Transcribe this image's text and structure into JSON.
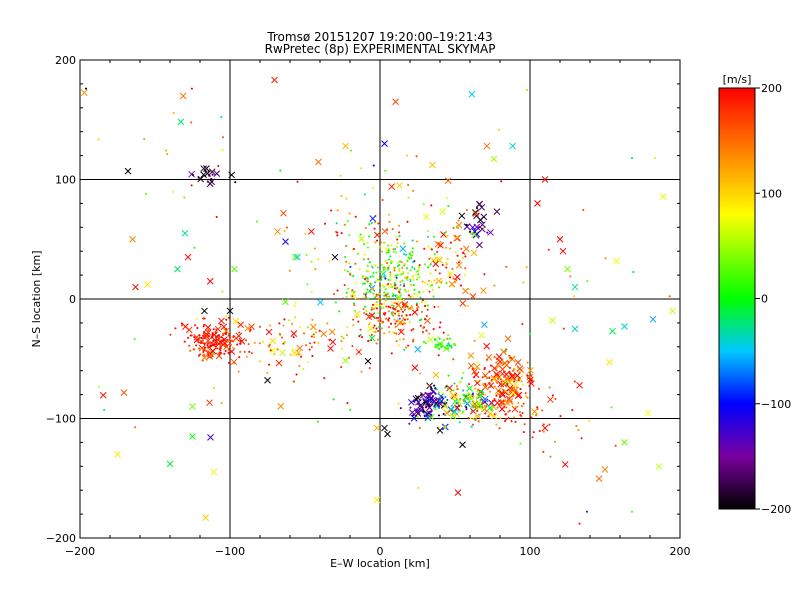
{
  "chart_data": {
    "type": "scatter",
    "title": "Tromsø 20151207 19:20:00–19:21:43",
    "subtitle": "RwPretec (8p) EXPERIMENTAL SKYMAP",
    "xlabel": "E–W location [km]",
    "ylabel": "N–S location [km]",
    "xlim": [
      -200,
      200
    ],
    "ylim": [
      -200,
      200
    ],
    "xticks": [
      -200,
      -100,
      0,
      100,
      200
    ],
    "yticks": [
      -200,
      -100,
      0,
      100,
      200
    ],
    "xtick_labels": [
      "−200",
      "−100",
      "0",
      "100",
      "200"
    ],
    "ytick_labels": [
      "−200",
      "−100",
      "0",
      "100",
      "200"
    ],
    "grid": true,
    "colorbar": {
      "label": "[m/s]",
      "range": [
        -200,
        200
      ],
      "ticks": [
        -200,
        -100,
        0,
        100,
        200
      ],
      "tick_labels": [
        "−200",
        "−100",
        "0",
        "100",
        "200"
      ],
      "stops": [
        {
          "value": -200,
          "color": "#000000"
        },
        {
          "value": -150,
          "color": "#7a00a0"
        },
        {
          "value": -100,
          "color": "#0000ff"
        },
        {
          "value": -50,
          "color": "#00c8ff"
        },
        {
          "value": 0,
          "color": "#00ff00"
        },
        {
          "value": 80,
          "color": "#ffff00"
        },
        {
          "value": 140,
          "color": "#ff8000"
        },
        {
          "value": 200,
          "color": "#ff0000"
        }
      ]
    },
    "markers": {
      "cross": "x",
      "dot": "+"
    },
    "clusters": [
      {
        "cx": 8,
        "cy": 15,
        "sx": 15,
        "sy": 18,
        "n": 320,
        "vmean": 40,
        "vsd": 60,
        "cross_frac": 0.03
      },
      {
        "cx": 10,
        "cy": -15,
        "sx": 14,
        "sy": 12,
        "n": 140,
        "vmean": 170,
        "vsd": 40,
        "cross_frac": 0.05
      },
      {
        "cx": -112,
        "cy": -35,
        "sx": 9,
        "sy": 8,
        "n": 170,
        "vmean": 185,
        "vsd": 25,
        "cross_frac": 0.15
      },
      {
        "cx": 82,
        "cy": -72,
        "sx": 10,
        "sy": 14,
        "n": 170,
        "vmean": 165,
        "vsd": 45,
        "cross_frac": 0.4
      },
      {
        "cx": 32,
        "cy": -88,
        "sx": 6,
        "sy": 7,
        "n": 90,
        "vmean": -150,
        "vsd": 50,
        "cross_frac": 0.4
      },
      {
        "cx": 55,
        "cy": -85,
        "sx": 12,
        "sy": 10,
        "n": 120,
        "vmean": 40,
        "vsd": 90,
        "cross_frac": 0.25
      },
      {
        "cx": 40,
        "cy": -37,
        "sx": 5,
        "sy": 3,
        "n": 45,
        "vmean": 15,
        "vsd": 25,
        "cross_frac": 0.05
      },
      {
        "cx": -115,
        "cy": 102,
        "sx": 7,
        "sy": 4,
        "n": 20,
        "vmean": -190,
        "vsd": 15,
        "cross_frac": 0.7
      },
      {
        "cx": 65,
        "cy": 65,
        "sx": 6,
        "sy": 8,
        "n": 25,
        "vmean": -170,
        "vsd": 40,
        "cross_frac": 0.7
      },
      {
        "cx": 48,
        "cy": 35,
        "sx": 10,
        "sy": 15,
        "n": 60,
        "vmean": 150,
        "vsd": 60,
        "cross_frac": 0.3
      },
      {
        "cx": -60,
        "cy": -35,
        "sx": 30,
        "sy": 12,
        "n": 110,
        "vmean": 160,
        "vsd": 60,
        "cross_frac": 0.25
      },
      {
        "cx": -10,
        "cy": 50,
        "sx": 25,
        "sy": 30,
        "n": 90,
        "vmean": 120,
        "vsd": 70,
        "cross_frac": 0.05
      },
      {
        "cx": 90,
        "cy": -95,
        "sx": 25,
        "sy": 15,
        "n": 70,
        "vmean": 175,
        "vsd": 30,
        "cross_frac": 0.1
      },
      {
        "cx": 0,
        "cy": 0,
        "sx": 110,
        "sy": 95,
        "n": 160,
        "vmean": 110,
        "vsd": 80,
        "cross_frac": 0.35
      }
    ],
    "singles": [
      {
        "x": -196,
        "y": 176,
        "v": -200,
        "m": "dot"
      },
      {
        "x": -168,
        "y": 107,
        "v": -200,
        "m": "cross"
      },
      {
        "x": -165,
        "y": 50,
        "v": 140,
        "m": "cross"
      },
      {
        "x": -163,
        "y": 10,
        "v": 200,
        "m": "cross"
      },
      {
        "x": -155,
        "y": 12,
        "v": 90,
        "m": "cross"
      },
      {
        "x": -130,
        "y": 55,
        "v": -30,
        "m": "cross"
      },
      {
        "x": -135,
        "y": 25,
        "v": -20,
        "m": "cross"
      },
      {
        "x": -128,
        "y": 35,
        "v": 200,
        "m": "cross"
      },
      {
        "x": -175,
        "y": -130,
        "v": 90,
        "m": "cross"
      },
      {
        "x": -140,
        "y": -138,
        "v": -10,
        "m": "cross"
      },
      {
        "x": -125,
        "y": -115,
        "v": 0,
        "m": "cross"
      },
      {
        "x": -125,
        "y": -90,
        "v": 30,
        "m": "cross"
      },
      {
        "x": -97,
        "y": 25,
        "v": 30,
        "m": "cross"
      },
      {
        "x": -75,
        "y": -68,
        "v": -200,
        "m": "cross"
      },
      {
        "x": -63,
        "y": 48,
        "v": -110,
        "m": "cross"
      },
      {
        "x": -55,
        "y": 35,
        "v": -40,
        "m": "cross"
      },
      {
        "x": -30,
        "y": 35,
        "v": -190,
        "m": "cross"
      },
      {
        "x": -23,
        "y": 128,
        "v": 110,
        "m": "cross"
      },
      {
        "x": 3,
        "y": 130,
        "v": -100,
        "m": "cross"
      },
      {
        "x": 18,
        "y": 120,
        "v": 100,
        "m": "dot"
      },
      {
        "x": 35,
        "y": 112,
        "v": 110,
        "m": "cross"
      },
      {
        "x": 13,
        "y": 95,
        "v": 100,
        "m": "cross"
      },
      {
        "x": 98,
        "y": 175,
        "v": 40,
        "m": "dot"
      },
      {
        "x": 110,
        "y": 100,
        "v": 200,
        "m": "cross"
      },
      {
        "x": 105,
        "y": 80,
        "v": 200,
        "m": "cross"
      },
      {
        "x": 120,
        "y": 50,
        "v": 200,
        "m": "cross"
      },
      {
        "x": 122,
        "y": 40,
        "v": 200,
        "m": "cross"
      },
      {
        "x": 125,
        "y": 25,
        "v": 40,
        "m": "cross"
      },
      {
        "x": 130,
        "y": 10,
        "v": -30,
        "m": "cross"
      },
      {
        "x": 115,
        "y": -18,
        "v": 60,
        "m": "cross"
      },
      {
        "x": 130,
        "y": -25,
        "v": -40,
        "m": "cross"
      },
      {
        "x": 155,
        "y": -27,
        "v": -20,
        "m": "cross"
      },
      {
        "x": 163,
        "y": -23,
        "v": -40,
        "m": "cross"
      },
      {
        "x": 182,
        "y": -17,
        "v": -60,
        "m": "cross"
      },
      {
        "x": 195,
        "y": -10,
        "v": 60,
        "m": "cross"
      },
      {
        "x": 168,
        "y": 118,
        "v": -20,
        "m": "dot"
      },
      {
        "x": 153,
        "y": -53,
        "v": 90,
        "m": "cross"
      },
      {
        "x": 163,
        "y": -120,
        "v": 30,
        "m": "cross"
      },
      {
        "x": 110,
        "y": -108,
        "v": 200,
        "m": "cross"
      },
      {
        "x": 138,
        "y": -178,
        "v": -90,
        "m": "dot"
      },
      {
        "x": 168,
        "y": -178,
        "v": 20,
        "m": "dot"
      },
      {
        "x": 133,
        "y": -188,
        "v": 190,
        "m": "dot"
      },
      {
        "x": 52,
        "y": -162,
        "v": 200,
        "m": "cross"
      },
      {
        "x": 55,
        "y": -122,
        "v": -200,
        "m": "cross"
      },
      {
        "x": -2,
        "y": -168,
        "v": 90,
        "m": "cross"
      },
      {
        "x": 3,
        "y": -108,
        "v": -200,
        "m": "cross"
      },
      {
        "x": 5,
        "y": -113,
        "v": -200,
        "m": "cross"
      },
      {
        "x": 40,
        "y": -110,
        "v": -200,
        "m": "cross"
      },
      {
        "x": -117,
        "y": -10,
        "v": -200,
        "m": "cross"
      },
      {
        "x": -100,
        "y": -10,
        "v": -200,
        "m": "cross"
      },
      {
        "x": -65,
        "y": -45,
        "v": 60,
        "m": "cross"
      },
      {
        "x": -8,
        "y": -52,
        "v": -200,
        "m": "cross"
      },
      {
        "x": -2,
        "y": -108,
        "v": 120,
        "m": "cross"
      }
    ]
  }
}
